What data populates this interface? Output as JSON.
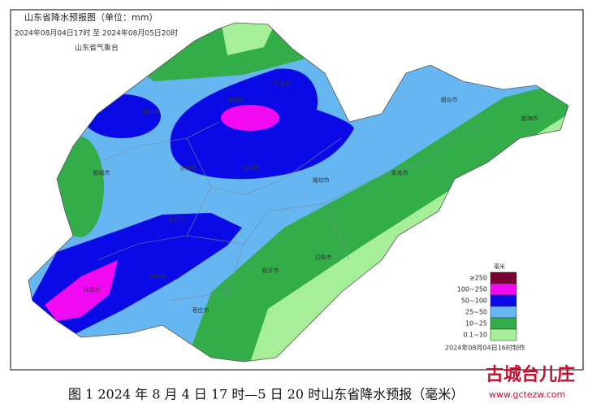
{
  "header": {
    "title": "山东省降水预报图（单位：mm）",
    "time_range": "2024年08月04日17时  至  2024年08月05日20时",
    "issuer": "山东省气象台"
  },
  "map": {
    "cities": [
      "德州市",
      "滨州市",
      "东营市",
      "聊城市",
      "济南市",
      "淄博市",
      "潍坊市",
      "烟台市",
      "威海市",
      "青岛市",
      "泰安市",
      "济宁市",
      "菏泽市",
      "枣庄市",
      "临沂市",
      "日照市"
    ]
  },
  "legend": {
    "unit": "毫米",
    "items": [
      {
        "label": "≥250",
        "color": "#7a0034"
      },
      {
        "label": "100~250",
        "color": "#f20af2"
      },
      {
        "label": "50~100",
        "color": "#0a0ae6"
      },
      {
        "label": "25~50",
        "color": "#66b6f2"
      },
      {
        "label": "10~25",
        "color": "#32ad4a"
      },
      {
        "label": "0.1~10",
        "color": "#a6ee98"
      }
    ]
  },
  "footer": {
    "made_time": "2024年08月04日16时制作"
  },
  "caption": "图 1 2024 年 8 月 4 日 17 时—5 日 20 时山东省降水预报（毫米）",
  "watermark": {
    "name": "古城台儿庄",
    "url": "www.gctezw.com"
  }
}
